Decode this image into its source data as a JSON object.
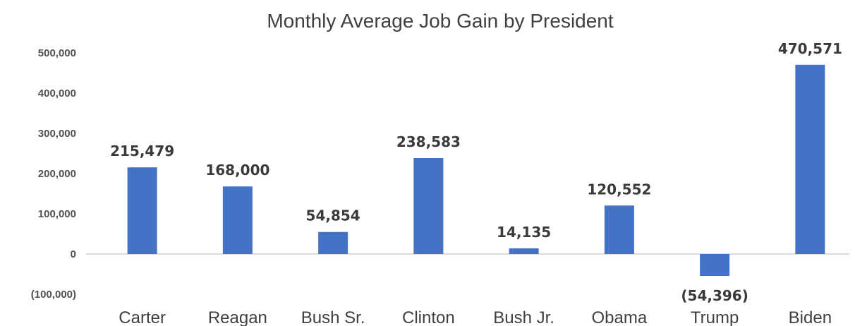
{
  "chart_data": {
    "type": "bar",
    "title": "Monthly Average Job Gain by President",
    "categories": [
      "Carter",
      "Reagan",
      "Bush Sr.",
      "Clinton",
      "Bush Jr.",
      "Obama",
      "Trump",
      "Biden"
    ],
    "values": [
      215479,
      168000,
      54854,
      238583,
      14135,
      120552,
      -54396,
      470571
    ],
    "data_labels": [
      "215,479",
      "168,000",
      "54,854",
      "238,583",
      "14,135",
      "120,552",
      "(54,396)",
      "470,571"
    ],
    "y_ticks": [
      -100000,
      0,
      100000,
      200000,
      300000,
      400000,
      500000
    ],
    "y_tick_labels": [
      "(100,000)",
      "0",
      "100,000",
      "200,000",
      "300,000",
      "400,000",
      "500,000"
    ],
    "ylim": [
      -100000,
      500000
    ],
    "xlabel": "",
    "ylabel": "",
    "grid": false,
    "legend": "none",
    "colors": {
      "bar": "#4472c4",
      "negative_label": "#d0182a",
      "axis_line": "#d9d9d9"
    }
  }
}
